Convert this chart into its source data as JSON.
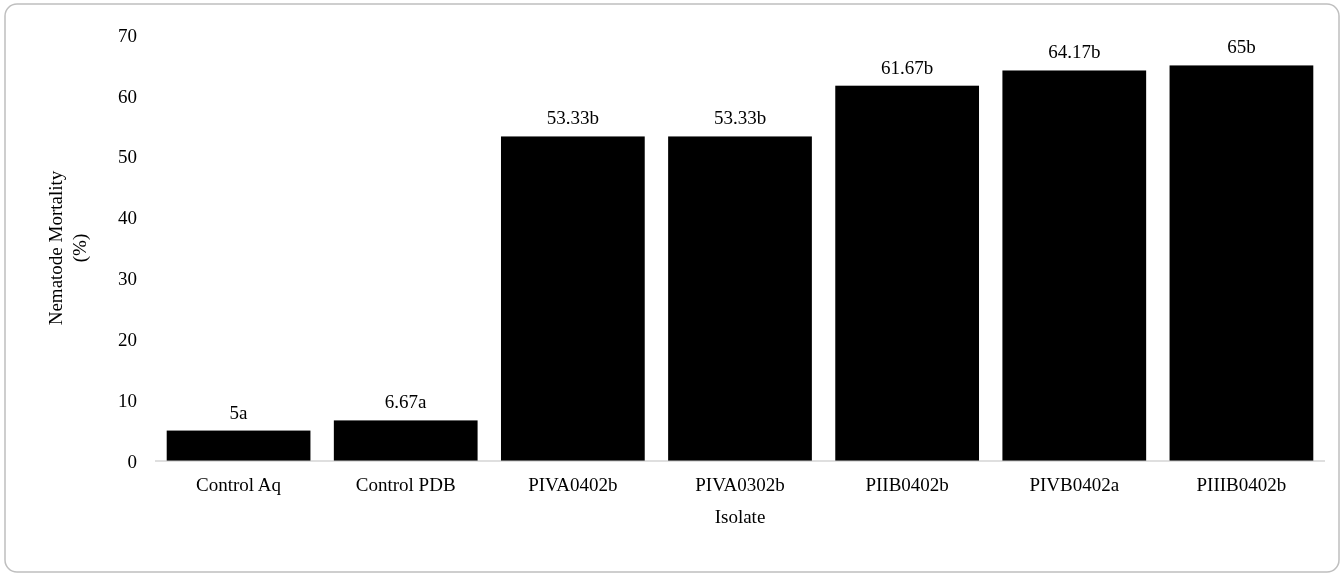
{
  "chart_data": {
    "type": "bar",
    "xlabel": "Isolate",
    "ylabel": "Nematode Mortality (%)",
    "categories": [
      "Control Aq",
      "Control PDB",
      "PIVA0402b",
      "PIVA0302b",
      "PIIB0402b",
      "PIVB0402a",
      "PIIIB0402b"
    ],
    "values": [
      5,
      6.67,
      53.33,
      53.33,
      61.67,
      64.17,
      65
    ],
    "value_labels": [
      "5a",
      "6.67a",
      "53.33b",
      "53.33b",
      "61.67b",
      "64.17b",
      "65b"
    ],
    "color": "#000000",
    "ylim": [
      0,
      70
    ],
    "yticks": [
      0,
      10,
      20,
      30,
      40,
      50,
      60,
      70
    ]
  }
}
